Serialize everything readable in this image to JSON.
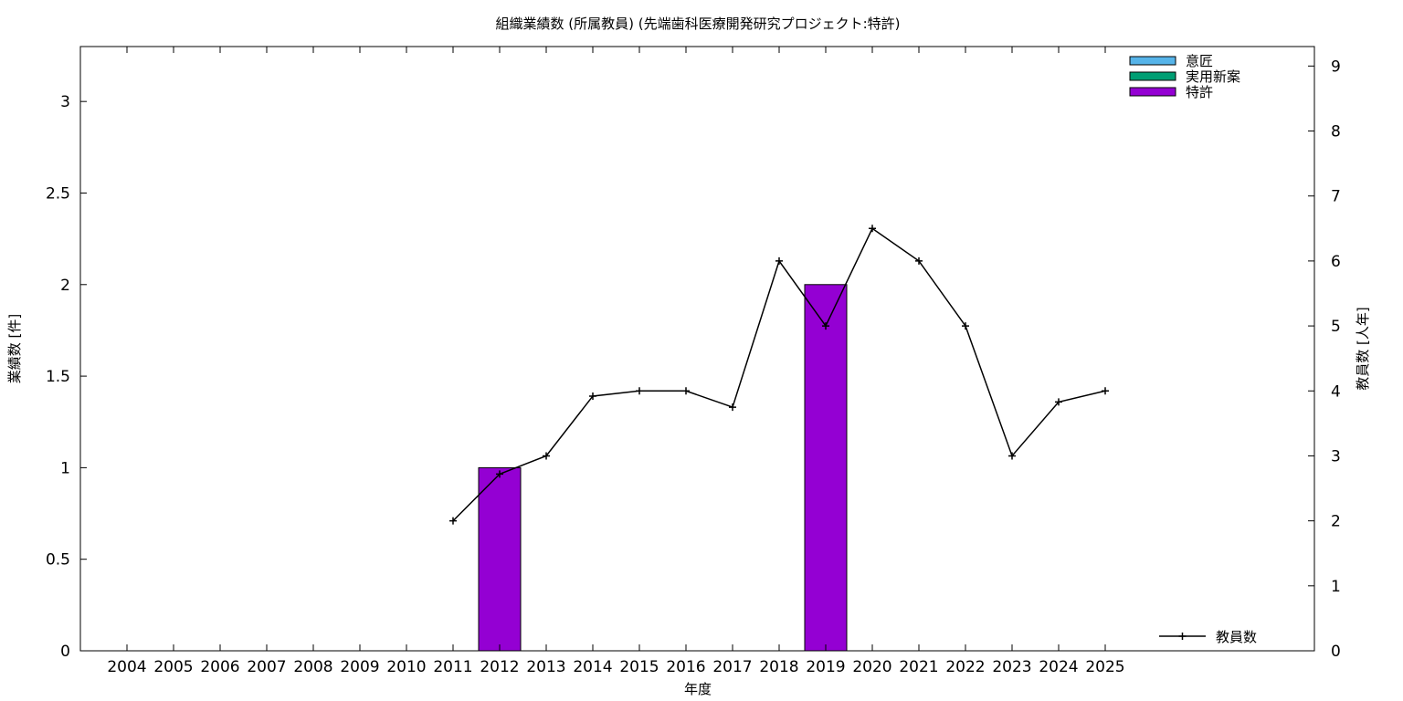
{
  "chart_data": {
    "type": "bar",
    "title": "組織業績数 (所属教員) (先端歯科医療開発研究プロジェクト:特許)",
    "xlabel": "年度",
    "ylabel_left": "業績数 [件]",
    "ylabel_right": "教員数 [人年]",
    "categories": [
      "2004",
      "2005",
      "2006",
      "2007",
      "2008",
      "2009",
      "2010",
      "2011",
      "2012",
      "2013",
      "2014",
      "2015",
      "2016",
      "2017",
      "2018",
      "2019",
      "2020",
      "2021",
      "2022",
      "2023",
      "2024",
      "2025"
    ],
    "y_left_range": [
      0,
      3.3
    ],
    "y_left_ticks": [
      0,
      0.5,
      1,
      1.5,
      2,
      2.5,
      3
    ],
    "y_left_tick_labels": [
      "0",
      "0.5",
      "1",
      "1.5",
      "2",
      "2.5",
      "3"
    ],
    "y_right_range": [
      0,
      9.3
    ],
    "y_right_ticks": [
      0,
      1,
      2,
      3,
      4,
      5,
      6,
      7,
      8,
      9
    ],
    "y_right_tick_labels": [
      "0",
      "1",
      "2",
      "3",
      "4",
      "5",
      "6",
      "7",
      "8",
      "9"
    ],
    "series": [
      {
        "name": "意匠",
        "kind": "bar",
        "color": "#56b4e9",
        "values": [
          0,
          0,
          0,
          0,
          0,
          0,
          0,
          0,
          0,
          0,
          0,
          0,
          0,
          0,
          0,
          0,
          0,
          0,
          0,
          0,
          0,
          0
        ]
      },
      {
        "name": "実用新案",
        "kind": "bar",
        "color": "#009e73",
        "values": [
          0,
          0,
          0,
          0,
          0,
          0,
          0,
          0,
          0,
          0,
          0,
          0,
          0,
          0,
          0,
          0,
          0,
          0,
          0,
          0,
          0,
          0
        ]
      },
      {
        "name": "特許",
        "kind": "bar",
        "color": "#9400d3",
        "values": [
          0,
          0,
          0,
          0,
          0,
          0,
          0,
          0,
          1,
          0,
          0,
          0,
          0,
          0,
          0,
          2,
          0,
          0,
          0,
          0,
          0,
          0
        ]
      },
      {
        "name": "教員数",
        "kind": "line",
        "color": "#000000",
        "axis": "right",
        "x": [
          "2011",
          "2012",
          "2013",
          "2014",
          "2015",
          "2016",
          "2017",
          "2018",
          "2019",
          "2020",
          "2021",
          "2022",
          "2023",
          "2024",
          "2025"
        ],
        "values": [
          2,
          2.72,
          3,
          3.92,
          4,
          4,
          3.75,
          6,
          5,
          6.5,
          6,
          5,
          3,
          3.83,
          4
        ]
      }
    ],
    "legend_bars_position": "top-right",
    "legend_line_position": "bottom-right",
    "grid": false
  }
}
